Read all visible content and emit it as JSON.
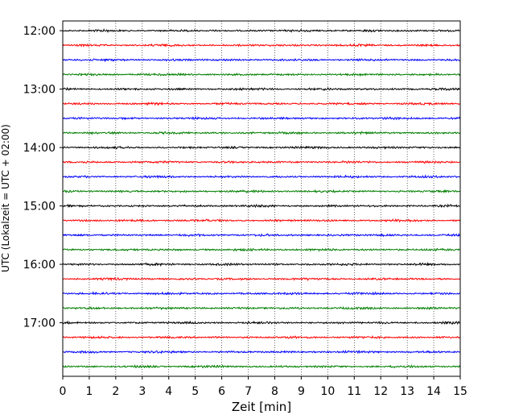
{
  "chart_data": {
    "type": "line",
    "title": "",
    "xlabel": "Zeit  [min]",
    "ylabel": "UTC (Lokalzeit = UTC + 02:00)",
    "xlim": [
      0,
      15
    ],
    "x_ticks": [
      0,
      1,
      2,
      3,
      4,
      5,
      6,
      7,
      8,
      9,
      10,
      11,
      12,
      13,
      14,
      15
    ],
    "x_tick_labels": [
      "0",
      "1",
      "2",
      "3",
      "4",
      "5",
      "6",
      "7",
      "8",
      "9",
      "10",
      "11",
      "12",
      "13",
      "14",
      "15"
    ],
    "y_ticks": [
      "12:00",
      "13:00",
      "14:00",
      "15:00",
      "16:00",
      "17:00"
    ],
    "y_range": [
      "11:50",
      "17:55"
    ],
    "trace_interval_min": 15,
    "trace_start": "12:00",
    "trace_count": 24,
    "trace_colors": [
      "#000000",
      "#ff0000",
      "#0000ff",
      "#007f00"
    ],
    "grid": "vertical dotted lines at each minute",
    "legend": "none"
  }
}
